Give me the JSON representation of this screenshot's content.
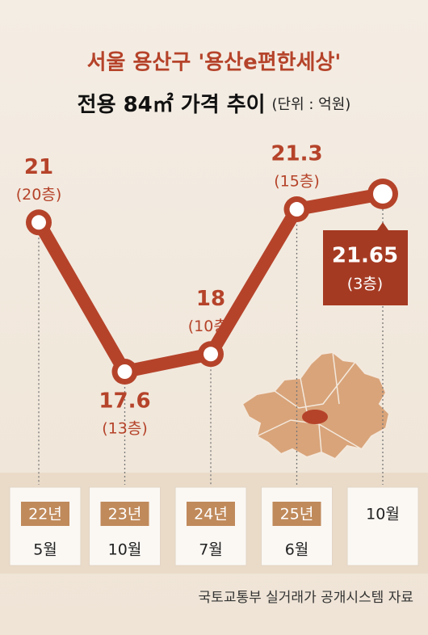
{
  "chart_data": {
    "type": "line",
    "title": "서울 용산구 '용산e편한세상'",
    "subtitle": "전용 84㎡ 가격 추이",
    "unit_note": "(단위 : 억원)",
    "category_groups": [
      "22년",
      "23년",
      "24년",
      "25년",
      null
    ],
    "categories": [
      "5월",
      "10월",
      "7월",
      "6월",
      "10월"
    ],
    "values": [
      21,
      17.6,
      18,
      21.3,
      21.65
    ],
    "floor_labels": [
      "(20층)",
      "(13층)",
      "(10층)",
      "(15층)",
      "(3층)"
    ],
    "color": "#b5432a",
    "source": "국토교통부 실거래가 공개시스템 자료"
  }
}
